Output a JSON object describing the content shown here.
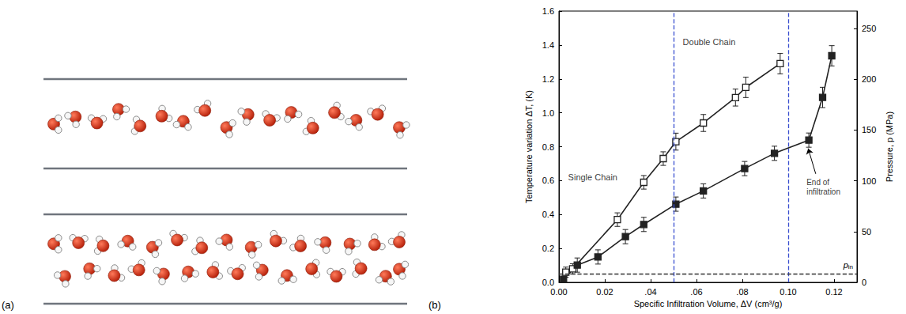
{
  "diagram": {
    "label": "(a)",
    "channels": [
      {
        "rows": 1,
        "molecules": 17
      },
      {
        "rows": 2,
        "molecules": 30
      }
    ]
  },
  "chart_data": {
    "type": "line",
    "panel_label": "(b)",
    "x_label": "Specific Infiltration Volume, ΔV (cm³/g)",
    "y_label": "Temperature variation ΔT, (K)",
    "y2_label": "Pressure, p (MPa)",
    "xlim": [
      0,
      0.13
    ],
    "xticks": [
      {
        "value": 0,
        "label": "0.00"
      },
      0.02,
      {
        "value": 0.04,
        "label": ".04"
      },
      {
        "value": 0.06,
        "label": ".06"
      },
      {
        "value": 0.08,
        "label": ".08"
      },
      {
        "value": 0.1,
        "label": "0.10"
      },
      0.12
    ],
    "ylim": [
      0,
      1.6
    ],
    "yticks": [
      {
        "value": 0,
        "label": "0.0"
      },
      0.2,
      0.4,
      0.6,
      0.8,
      {
        "value": 1,
        "label": "1.0"
      },
      1.2,
      1.4,
      1.6
    ],
    "y2lim": [
      0,
      267
    ],
    "y2ticks": [
      0,
      50,
      100,
      150,
      200,
      250
    ],
    "grid": false,
    "series": [
      {
        "axis": "y",
        "marker": "open_square",
        "color": "#222222",
        "x": [
          0.003,
          0.006,
          0.0255,
          0.037,
          0.0455,
          0.051,
          0.063,
          0.077,
          0.0815,
          0.0965
        ],
        "values": [
          0.06,
          0.08,
          0.37,
          0.59,
          0.73,
          0.83,
          0.94,
          1.09,
          1.15,
          1.29
        ],
        "errors": [
          0.03,
          0.03,
          0.04,
          0.04,
          0.04,
          0.05,
          0.05,
          0.05,
          0.06,
          0.06
        ]
      },
      {
        "axis": "y2",
        "marker": "square",
        "color": "#222222",
        "x": [
          0.002,
          0.008,
          0.017,
          0.029,
          0.037,
          0.051,
          0.063,
          0.081,
          0.094,
          0.109,
          0.115,
          0.119
        ],
        "values": [
          3,
          17,
          25,
          45,
          57,
          77,
          90,
          112,
          127,
          140,
          182,
          223
        ],
        "errors": [
          3,
          7,
          7,
          7,
          7,
          7,
          7,
          7,
          7,
          7,
          10,
          10
        ]
      }
    ],
    "reference_lines": [
      {
        "x": 0.051,
        "line_style": "dashed",
        "color": "#3a4fd0"
      },
      {
        "x": 0.105,
        "line_style": "dashed",
        "color": "#3a4fd0"
      },
      {
        "y": 8,
        "axis": "y2",
        "line_style": "dashed",
        "color": "#333333",
        "label": "p",
        "label_subscript": "in"
      }
    ],
    "annotations": [
      {
        "text": "Single Chain",
        "x": 0.004,
        "y": 0.62
      },
      {
        "text": "Double Chain",
        "x": 0.054,
        "y": 1.42
      },
      {
        "text": "End of infiltration",
        "x": 0.108,
        "y": 0.56,
        "arrow_from": [
          0.112,
          0.64
        ],
        "arrow_to": [
          0.1087,
          0.79
        ]
      }
    ]
  }
}
